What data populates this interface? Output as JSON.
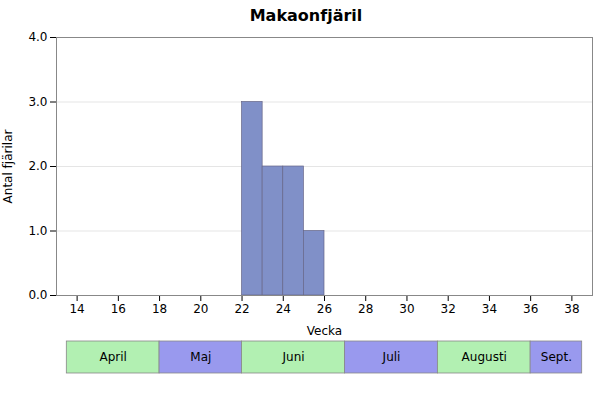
{
  "chart_data": {
    "type": "histogram",
    "title": "Makaonfjäril",
    "xlabel": "Vecka",
    "ylabel": "Antal fjärilar",
    "bins": [
      22,
      23,
      24,
      25,
      26
    ],
    "values": [
      3,
      2,
      2,
      1
    ],
    "color": "#8090c8",
    "xlim": [
      13,
      39
    ],
    "xticks": [
      14,
      16,
      18,
      20,
      22,
      24,
      26,
      28,
      30,
      32,
      34,
      36,
      38
    ],
    "ylim": [
      0,
      4
    ],
    "yticks": [
      0,
      1,
      2,
      3,
      4
    ],
    "grid": true,
    "month_bands": [
      {
        "label": "April",
        "start": 13.5,
        "end": 18.0,
        "color": "#b2f0b2"
      },
      {
        "label": "Maj",
        "start": 18.0,
        "end": 22.0,
        "color": "#9999ee"
      },
      {
        "label": "Juni",
        "start": 22.0,
        "end": 27.0,
        "color": "#b2f0b2"
      },
      {
        "label": "Juli",
        "start": 27.0,
        "end": 31.5,
        "color": "#9999ee"
      },
      {
        "label": "Augusti",
        "start": 31.5,
        "end": 36.0,
        "color": "#b2f0b2"
      },
      {
        "label": "Sept.",
        "start": 36.0,
        "end": 38.5,
        "color": "#9999ee"
      }
    ]
  }
}
